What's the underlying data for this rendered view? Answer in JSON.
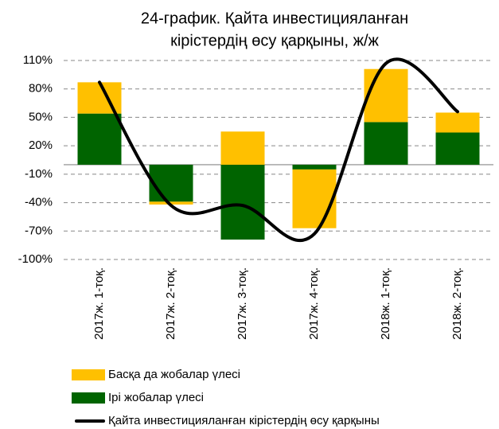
{
  "chart_data": {
    "type": "bar-line",
    "title": [
      "24-график. Қайта инвестицияланған",
      "кірістердің өсу қарқыны, ж/ж"
    ],
    "categories": [
      "2017ж. 1-тоқ.",
      "2017ж. 2-тоқ.",
      "2017ж. 3-тоқ.",
      "2017ж. 4-тоқ.",
      "2018ж. 1-тоқ.",
      "2018ж. 2-тоқ."
    ],
    "series": [
      {
        "name": "Ірі жобалар үлесі",
        "type": "bar",
        "color": "#006400",
        "values": [
          54,
          -39,
          -79,
          -5,
          45,
          34
        ]
      },
      {
        "name": "Басқа да жобалар үлесі",
        "type": "bar",
        "color": "#FFC000",
        "values": [
          33,
          -3,
          35,
          -62,
          56,
          21
        ]
      },
      {
        "name": "Қайта инвестицияланған кірістердің өсу қарқыны",
        "type": "line",
        "color": "#000000",
        "values": [
          87,
          -43,
          -43,
          -73,
          107,
          56
        ]
      }
    ],
    "ylim": [
      -100,
      110
    ],
    "yticks": [
      {
        "value": -100,
        "label": "-100%"
      },
      {
        "value": -70,
        "label": "-70%"
      },
      {
        "value": -40,
        "label": "-40%"
      },
      {
        "value": -10,
        "label": "-10%"
      },
      {
        "value": 20,
        "label": "20%"
      },
      {
        "value": 50,
        "label": "50%"
      },
      {
        "value": 80,
        "label": "80%"
      },
      {
        "value": 110,
        "label": "110%"
      }
    ],
    "grid": true,
    "legend": "bottom"
  }
}
